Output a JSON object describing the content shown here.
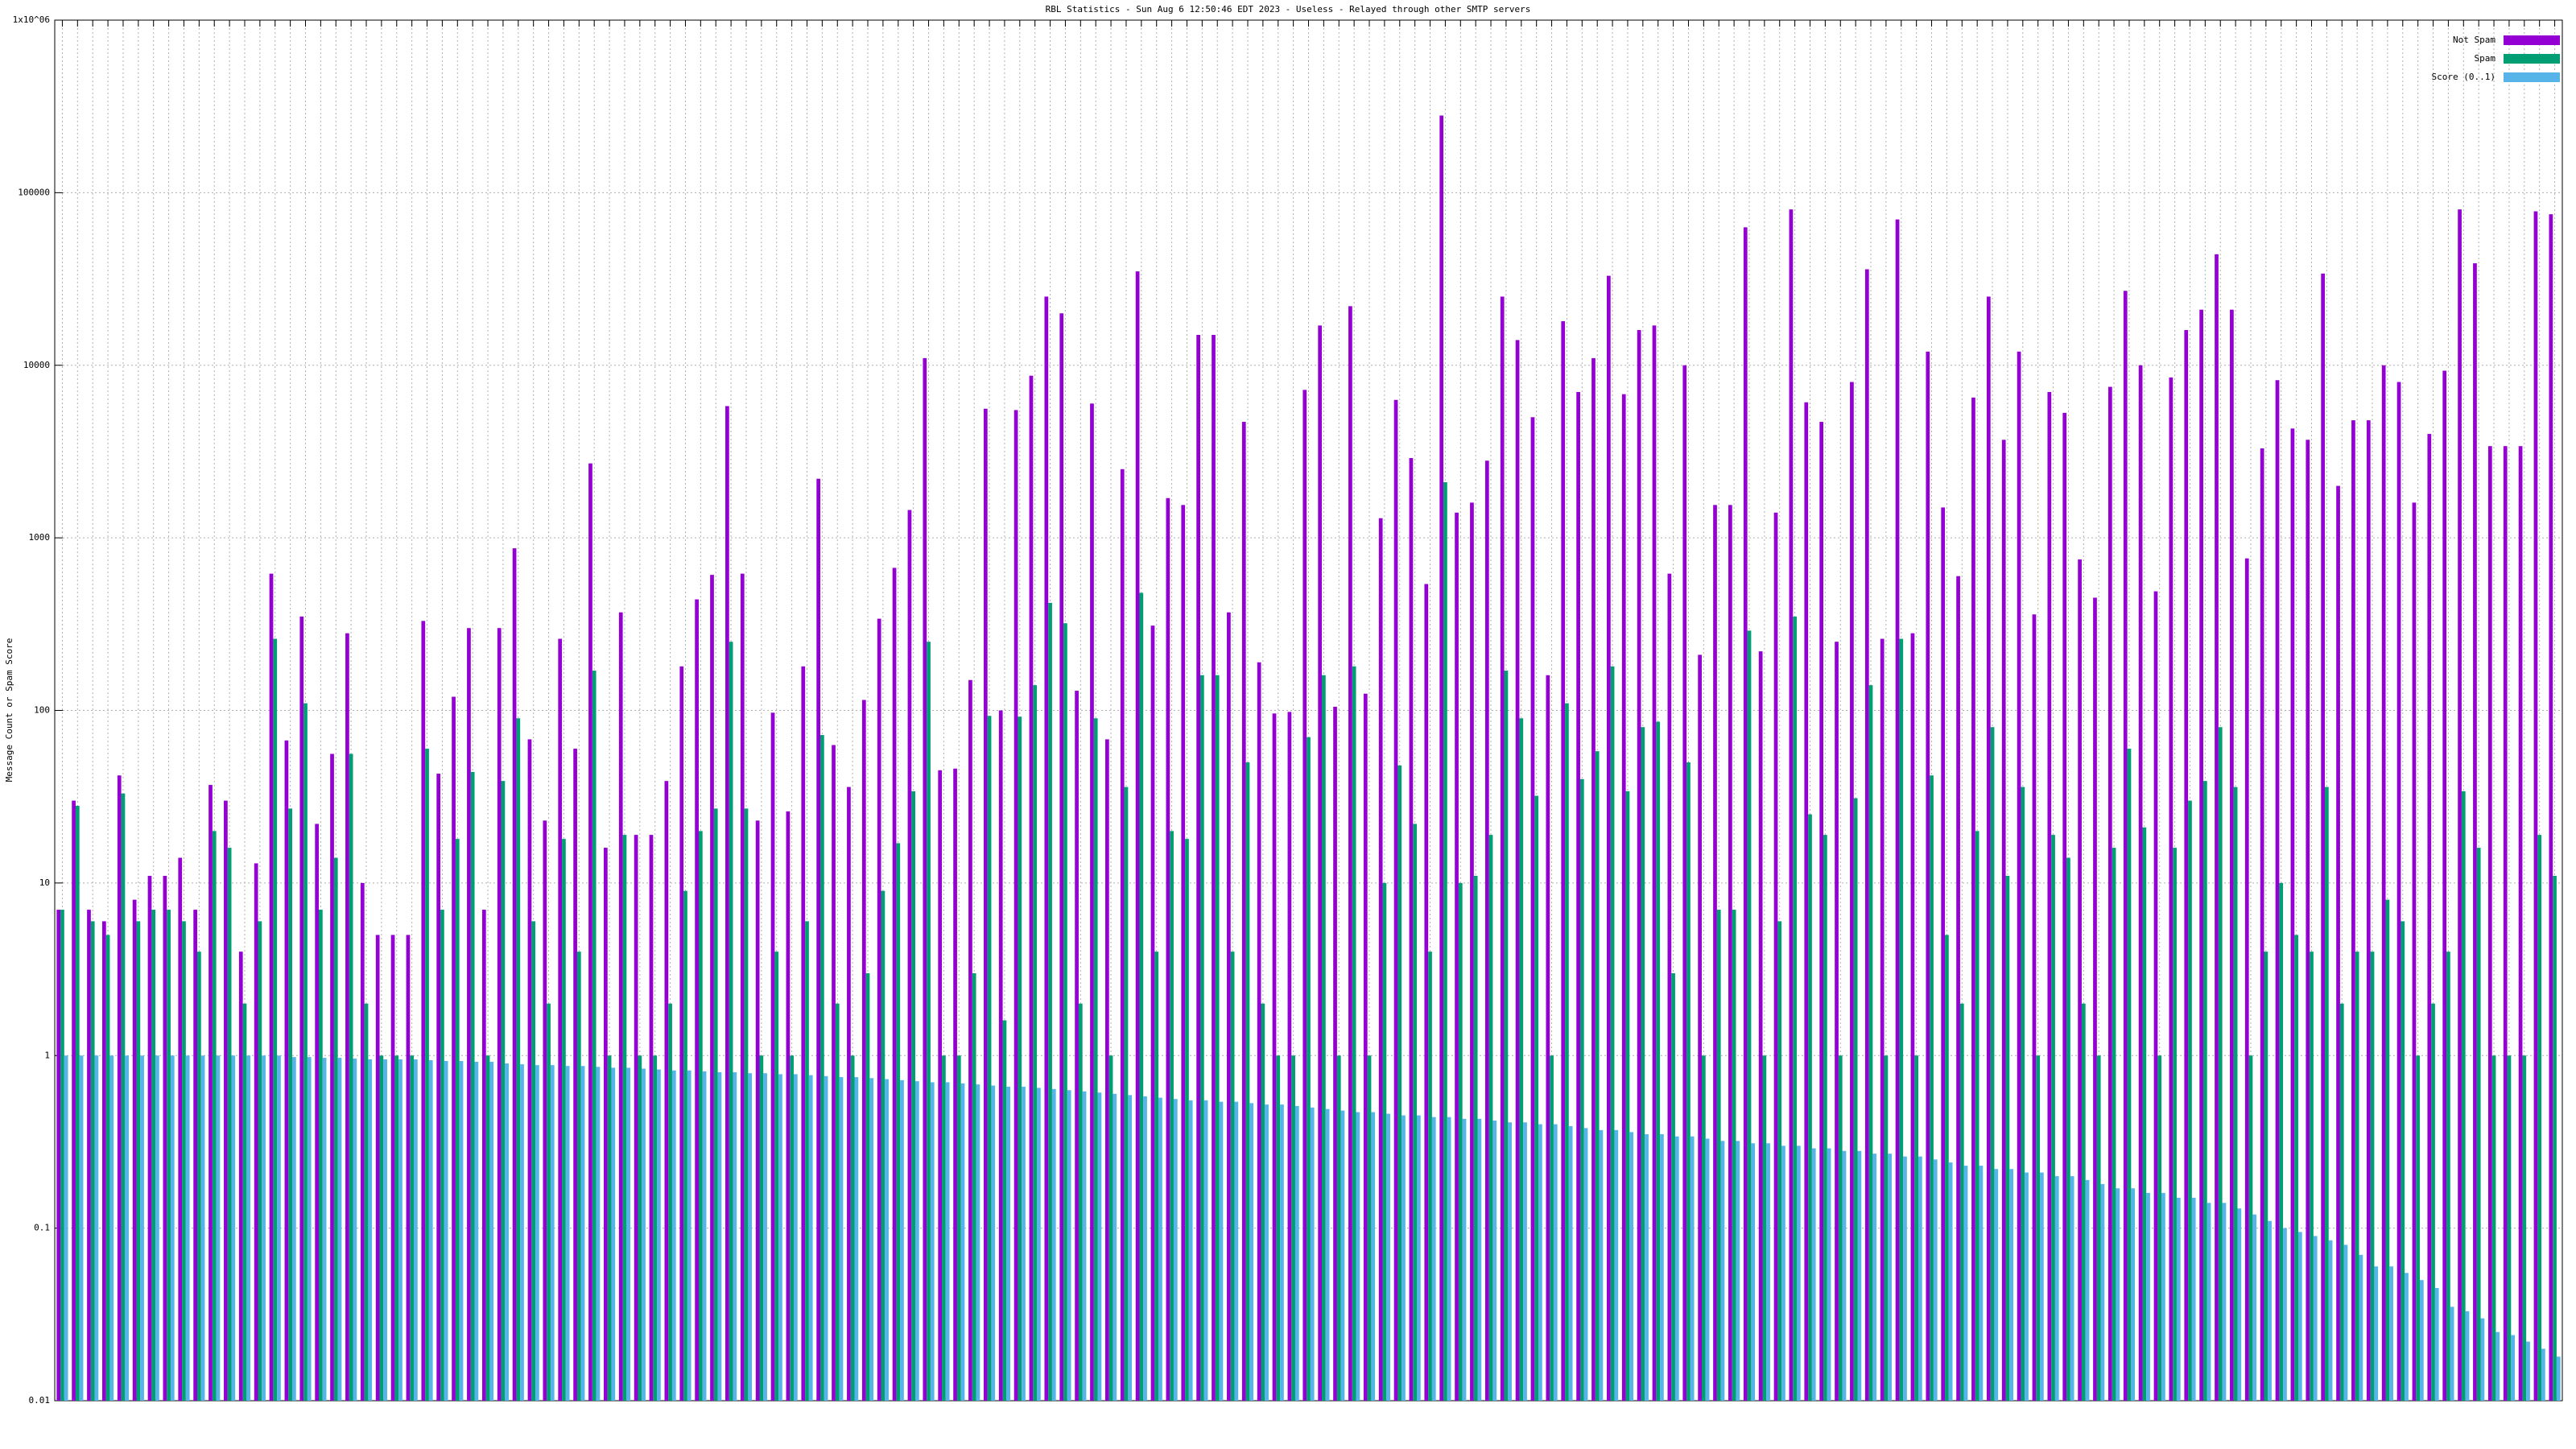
{
  "chart_data": {
    "type": "bar",
    "title": "RBL Statistics - Sun Aug  6 12:50:46 EDT 2023 - Useless - Relayed through other SMTP servers",
    "y_label": "Message Count or Spam Score",
    "log_y": true,
    "grid": true,
    "legend": "top-right",
    "ylim": [
      0.01,
      1000000
    ],
    "yticks": [
      0.01,
      0.1,
      1,
      10,
      100,
      1000,
      10000,
      100000,
      {
        "value": 1000000,
        "label": "1x10^06"
      }
    ],
    "categories": [
      null,
      null,
      null,
      null,
      null,
      null,
      null,
      null,
      null,
      null,
      null,
      null,
      null,
      null,
      null,
      null,
      null,
      null,
      null,
      null,
      null,
      null,
      null,
      null,
      null,
      null,
      null,
      null,
      null,
      null,
      null,
      null,
      null,
      null,
      null,
      null,
      null,
      null,
      null,
      null,
      null,
      null,
      null,
      null,
      null,
      null,
      null,
      null,
      null,
      null,
      null,
      null,
      null,
      null,
      null,
      null,
      null,
      null,
      null,
      null,
      null,
      null,
      null,
      null,
      null,
      null,
      null,
      null,
      null,
      null,
      null,
      null,
      null,
      null,
      null,
      null,
      null,
      null,
      null,
      null,
      null,
      null,
      null,
      null,
      null,
      null,
      null,
      null,
      null,
      null,
      null,
      null,
      null,
      null,
      null,
      null,
      null,
      null,
      null,
      null,
      null,
      null,
      null,
      null,
      null,
      null,
      null,
      null,
      null,
      null,
      null,
      null,
      null,
      null,
      null,
      null,
      null,
      null,
      null,
      null,
      null,
      null,
      null,
      null,
      null,
      null,
      null,
      null,
      null,
      null,
      null,
      null,
      null,
      null,
      null,
      null,
      null,
      null,
      null,
      null,
      null,
      null,
      null,
      null,
      null,
      null,
      null,
      null,
      null,
      null,
      null,
      null,
      null,
      null,
      null,
      null,
      null,
      null,
      null,
      null,
      null,
      null,
      null,
      null,
      null
    ],
    "series": [
      {
        "name": "Not Spam",
        "color": "#9400d3",
        "values": [
          7,
          30,
          7,
          6,
          42,
          8,
          11,
          11,
          14,
          7,
          37,
          30,
          4,
          13,
          620,
          67,
          350,
          22,
          56,
          280,
          10,
          5,
          5,
          5,
          330,
          43,
          120,
          300,
          7,
          300,
          870,
          68,
          23,
          260,
          60,
          2700,
          16,
          370,
          19,
          19,
          39,
          180,
          440,
          610,
          5800,
          620,
          23,
          97,
          26,
          180,
          2200,
          63,
          36,
          115,
          340,
          670,
          1450,
          11000,
          45,
          46,
          150,
          5600,
          100,
          5500,
          8700,
          25000,
          20000,
          130,
          6000,
          68,
          2500,
          35000,
          310,
          1700,
          1550,
          15000,
          15000,
          370,
          4700,
          190,
          96,
          98,
          7200,
          17000,
          105,
          22000,
          125,
          1300,
          6300,
          2900,
          540,
          280000,
          1400,
          1600,
          2800,
          25000,
          14000,
          5000,
          160,
          18000,
          7000,
          11000,
          33000,
          6800,
          16000,
          17000,
          620,
          10000,
          210,
          1550,
          1550,
          63000,
          220,
          1400,
          80000,
          6100,
          4700,
          250,
          8000,
          36000,
          260,
          70000,
          280,
          12000,
          1500,
          600,
          6500,
          25000,
          3700,
          12000,
          360,
          7000,
          5300,
          750,
          450,
          7500,
          27000,
          10000,
          490,
          8500,
          16000,
          21000,
          44000,
          21000,
          760,
          3300,
          8200,
          4300,
          3700,
          34000,
          2000,
          4800,
          4800,
          10000,
          8000,
          1600,
          4000,
          9300,
          80000,
          39000,
          3400,
          3400,
          3400,
          78000,
          75000
        ]
      },
      {
        "name": "Spam",
        "color": "#009e73",
        "values": [
          7,
          28,
          6,
          5,
          33,
          6,
          7,
          7,
          6,
          4,
          20,
          16,
          2,
          6,
          260,
          27,
          110,
          7,
          14,
          56,
          2,
          1,
          1,
          1,
          60,
          7,
          18,
          44,
          1,
          39,
          90,
          6,
          2,
          18,
          4,
          170,
          1,
          19,
          1,
          1,
          2,
          9,
          20,
          27,
          250,
          27,
          1,
          4,
          1,
          6,
          72,
          2,
          1,
          3,
          9,
          17,
          34,
          250,
          1,
          1,
          3,
          93,
          1.6,
          92,
          140,
          420,
          320,
          2,
          90,
          1,
          36,
          480,
          4,
          20,
          18,
          160,
          160,
          4,
          50,
          2,
          1,
          1,
          70,
          160,
          1,
          180,
          1,
          10,
          48,
          22,
          4,
          2100,
          10,
          11,
          19,
          170,
          90,
          32,
          1,
          110,
          40,
          58,
          180,
          34,
          80,
          86,
          3,
          50,
          1,
          7,
          7,
          290,
          1,
          6,
          350,
          25,
          19,
          1,
          31,
          140,
          1,
          260,
          1,
          42,
          5,
          2,
          20,
          80,
          11,
          36,
          1,
          19,
          14,
          2,
          1,
          16,
          60,
          21,
          1,
          16,
          30,
          39,
          80,
          36,
          1,
          4,
          10,
          5,
          4,
          36,
          2,
          4,
          4,
          8,
          6,
          1,
          2,
          4,
          34,
          16,
          1,
          1,
          1,
          19,
          11
        ]
      },
      {
        "name": "Score (0..1)",
        "color": "#56b4e9",
        "values": [
          1,
          1,
          1,
          1,
          1,
          1,
          1,
          1,
          1,
          1,
          1,
          1,
          1,
          1,
          1,
          0.98,
          0.98,
          0.97,
          0.97,
          0.96,
          0.95,
          0.95,
          0.95,
          0.95,
          0.94,
          0.93,
          0.93,
          0.92,
          0.92,
          0.9,
          0.89,
          0.88,
          0.88,
          0.87,
          0.87,
          0.86,
          0.85,
          0.85,
          0.84,
          0.83,
          0.82,
          0.82,
          0.81,
          0.8,
          0.8,
          0.79,
          0.79,
          0.78,
          0.78,
          0.77,
          0.76,
          0.75,
          0.75,
          0.74,
          0.73,
          0.72,
          0.71,
          0.7,
          0.7,
          0.69,
          0.68,
          0.67,
          0.66,
          0.66,
          0.65,
          0.64,
          0.63,
          0.62,
          0.61,
          0.6,
          0.59,
          0.58,
          0.57,
          0.56,
          0.55,
          0.55,
          0.54,
          0.54,
          0.53,
          0.52,
          0.52,
          0.51,
          0.5,
          0.49,
          0.48,
          0.47,
          0.47,
          0.46,
          0.45,
          0.45,
          0.44,
          0.44,
          0.43,
          0.43,
          0.42,
          0.41,
          0.41,
          0.4,
          0.4,
          0.39,
          0.38,
          0.37,
          0.37,
          0.36,
          0.35,
          0.35,
          0.34,
          0.34,
          0.33,
          0.32,
          0.32,
          0.31,
          0.31,
          0.3,
          0.3,
          0.29,
          0.29,
          0.28,
          0.28,
          0.27,
          0.27,
          0.26,
          0.26,
          0.25,
          0.24,
          0.23,
          0.23,
          0.22,
          0.22,
          0.21,
          0.21,
          0.2,
          0.2,
          0.19,
          0.18,
          0.17,
          0.17,
          0.16,
          0.16,
          0.15,
          0.15,
          0.14,
          0.14,
          0.13,
          0.12,
          0.11,
          0.1,
          0.095,
          0.09,
          0.085,
          0.08,
          0.07,
          0.06,
          0.06,
          0.055,
          0.05,
          0.045,
          0.035,
          0.033,
          0.03,
          0.025,
          0.024,
          0.022,
          0.02,
          0.018
        ]
      }
    ]
  }
}
